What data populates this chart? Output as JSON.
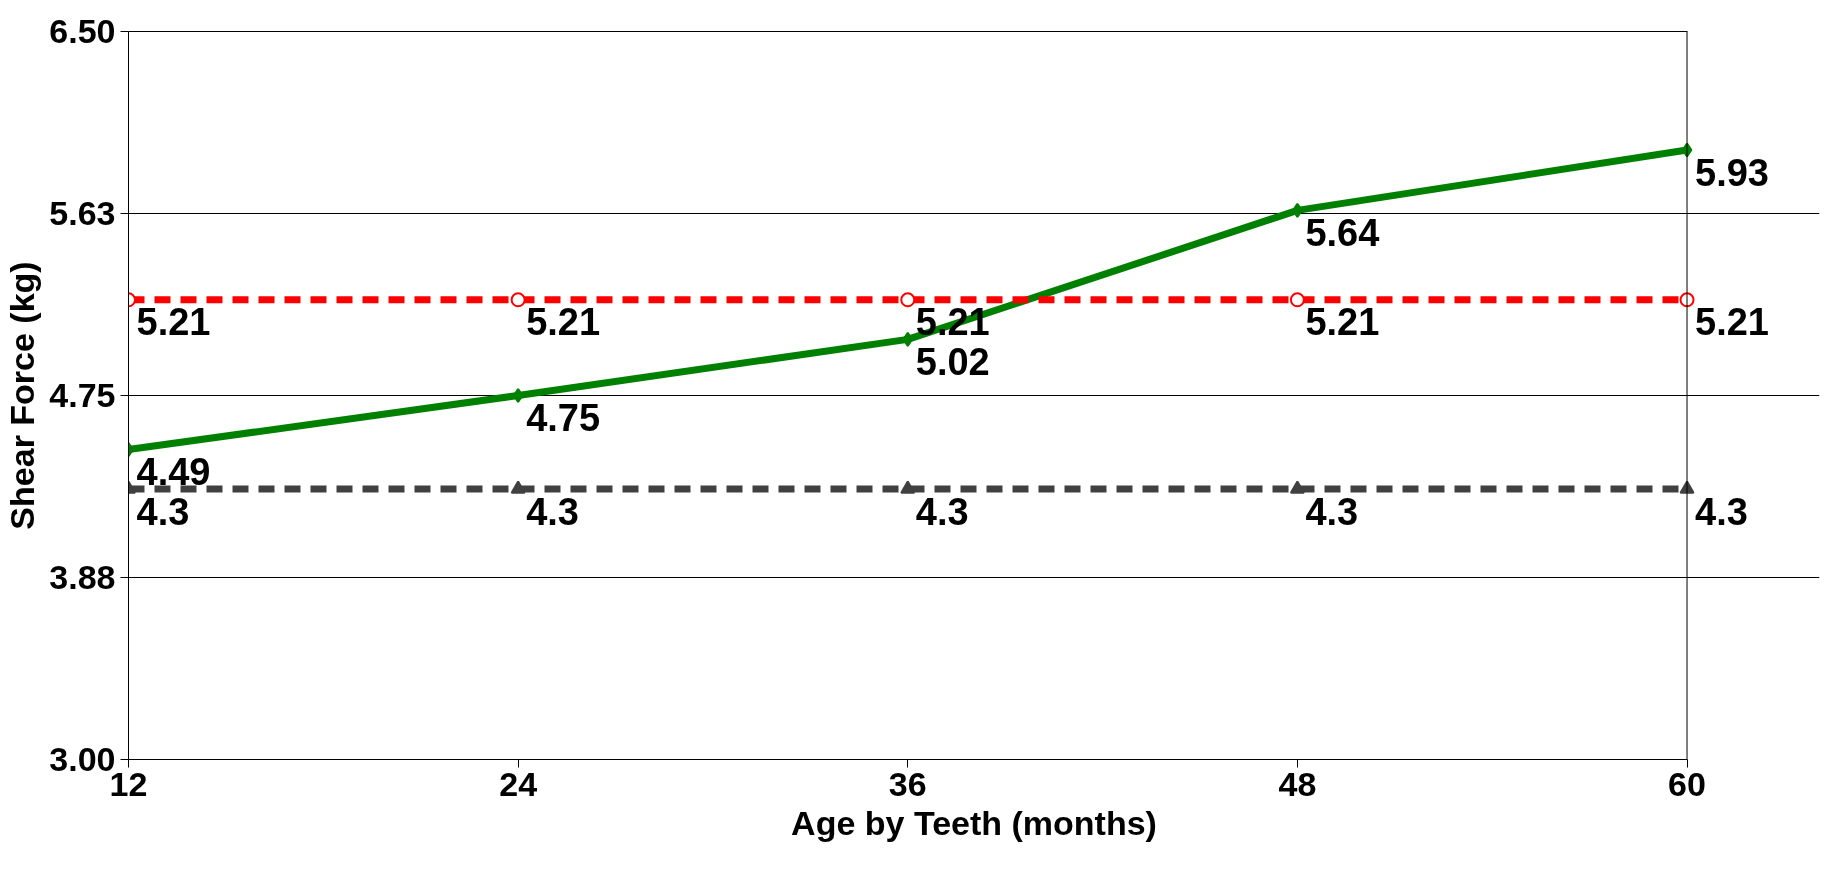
{
  "chart_data": {
    "type": "line",
    "xlabel": "Age by Teeth (months)",
    "ylabel": "Shear Force (kg)",
    "x": [
      12,
      24,
      36,
      48,
      60
    ],
    "xlim": [
      12,
      60
    ],
    "xticks": [
      12,
      24,
      36,
      48,
      60
    ],
    "ylim": [
      3.0,
      6.5
    ],
    "yticks": [
      {
        "value": 3.0,
        "label": "3.00"
      },
      {
        "value": 3.875,
        "label": "3.88"
      },
      {
        "value": 4.75,
        "label": "4.75"
      },
      {
        "value": 5.625,
        "label": "5.63"
      },
      {
        "value": 6.5,
        "label": "6.50"
      }
    ],
    "grid": "y",
    "data_labels": true,
    "series": [
      {
        "color": "#008000",
        "values": [
          4.49,
          4.75,
          5.02,
          5.64,
          5.93
        ],
        "marker": "diamond",
        "line_style": "solid"
      },
      {
        "color": "#ff0000",
        "values": [
          5.21,
          5.21,
          5.21,
          5.21,
          5.21
        ],
        "marker": "circle",
        "line_style": "dashed"
      },
      {
        "color": "#404040",
        "values": [
          4.3,
          4.3,
          4.3,
          4.3,
          4.3
        ],
        "marker": "triangle",
        "line_style": "dashed"
      }
    ]
  }
}
